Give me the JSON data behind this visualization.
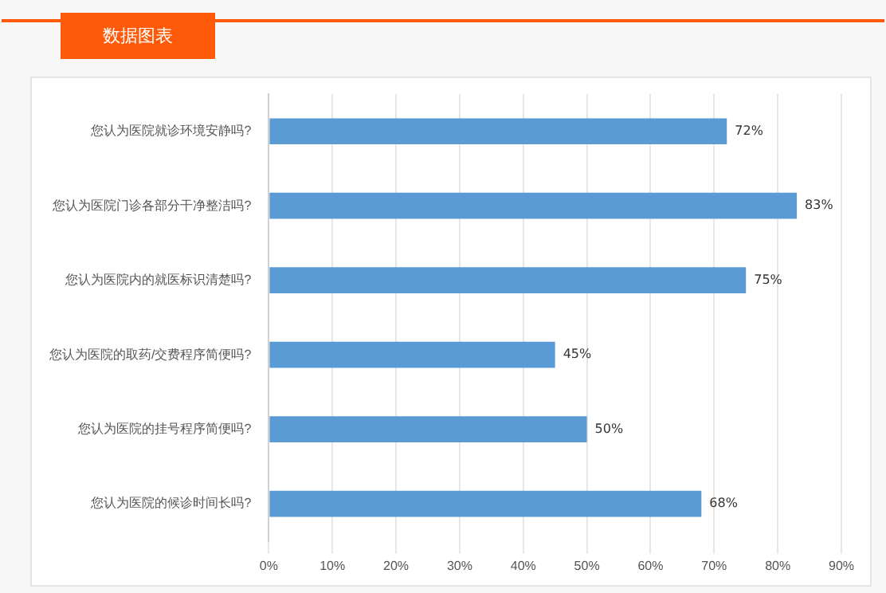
{
  "chart_data": {
    "type": "bar",
    "orientation": "horizontal",
    "title": "数据图表",
    "categories": [
      "您认为医院就诊环境安静吗?",
      "您认为医院门诊各部分干净整洁吗?",
      "您认为医院内的就医标识清楚吗?",
      "您认为医院的取药/交费程序简便吗?",
      "您认为医院的挂号程序简便吗?",
      "您认为医院的候诊时间长吗?"
    ],
    "values": [
      72,
      83,
      75,
      45,
      50,
      68
    ],
    "value_labels": [
      "72%",
      "83%",
      "75%",
      "45%",
      "50%",
      "68%"
    ],
    "color": "#5b9bd5",
    "xlim": [
      0,
      90
    ],
    "xticks": [
      {
        "value": 0,
        "label": "0%"
      },
      {
        "value": 10,
        "label": "10%"
      },
      {
        "value": 20,
        "label": "20%"
      },
      {
        "value": 30,
        "label": "30%"
      },
      {
        "value": 40,
        "label": "40%"
      },
      {
        "value": 50,
        "label": "50%"
      },
      {
        "value": 60,
        "label": "60%"
      },
      {
        "value": 70,
        "label": "70%"
      },
      {
        "value": 80,
        "label": "80%"
      },
      {
        "value": 90,
        "label": "90%"
      }
    ],
    "grid": "x",
    "legend": false
  }
}
